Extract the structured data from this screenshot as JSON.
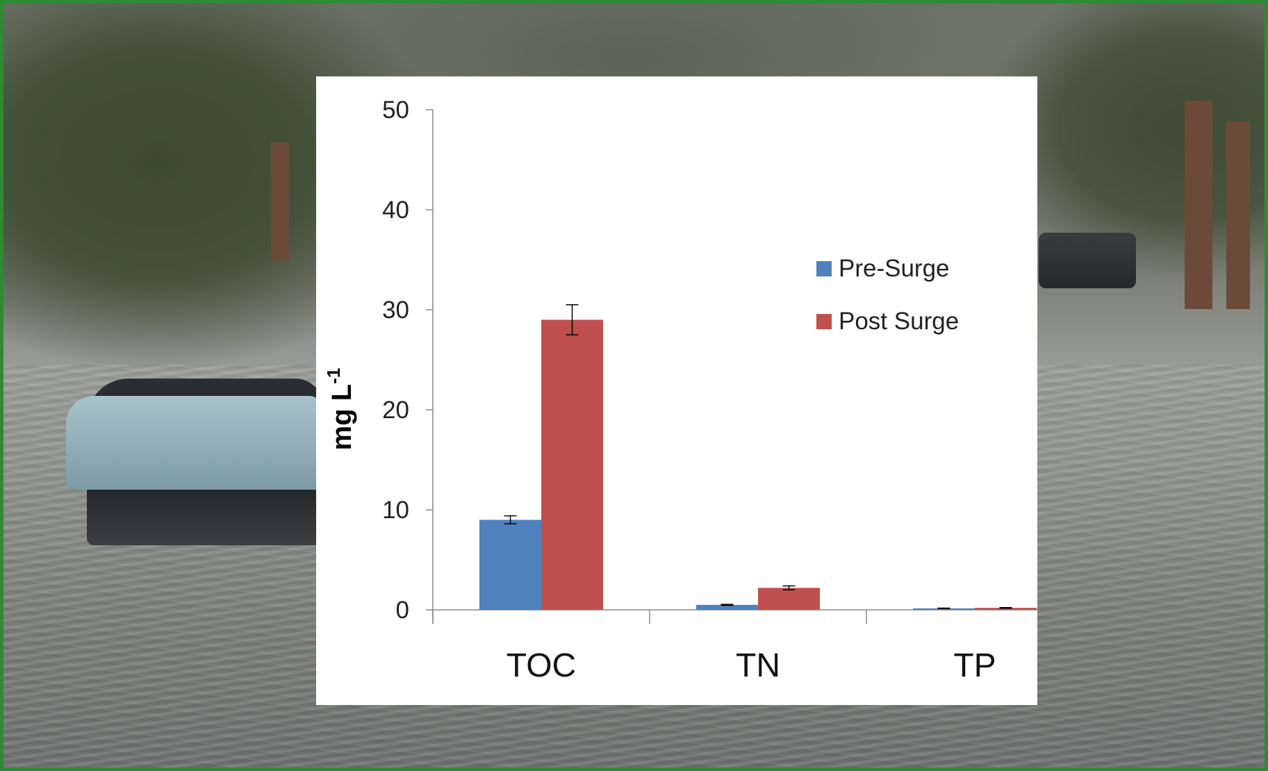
{
  "chart_data": {
    "type": "bar",
    "title": "",
    "xlabel": "",
    "ylabel": "mg L",
    "ylabel_superscript": "-1",
    "categories": [
      "TOC",
      "TN",
      "TP"
    ],
    "ylim": [
      0,
      50
    ],
    "yticks": [
      0,
      10,
      20,
      30,
      40,
      50
    ],
    "grid": false,
    "legend_position": "right",
    "series": [
      {
        "name": "Pre-Surge",
        "color": "#4f81bd",
        "values": [
          9.0,
          0.5,
          0.15
        ],
        "errors": [
          0.4,
          0.05,
          0.02
        ]
      },
      {
        "name": "Post Surge",
        "color": "#c0504d",
        "values": [
          29.0,
          2.2,
          0.2
        ],
        "errors": [
          1.5,
          0.2,
          0.03
        ]
      }
    ]
  },
  "colors": {
    "frame_border": "#2f8a35",
    "panel_background": "#ffffff"
  }
}
